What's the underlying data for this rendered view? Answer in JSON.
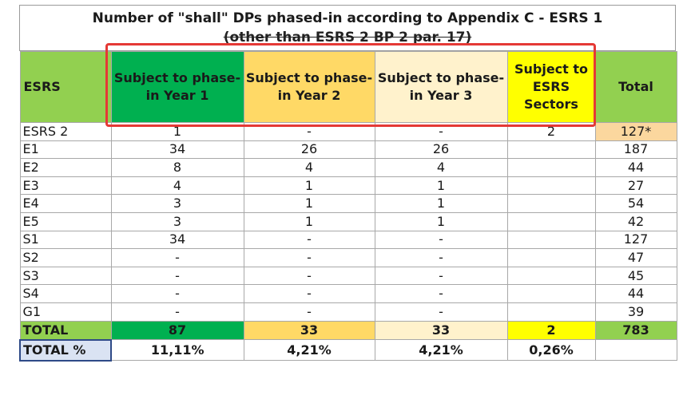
{
  "title": {
    "line1": "Number of \"shall\" DPs phased-in according to Appendix C - ESRS 1",
    "line2": "(other than ESRS 2 BP 2 par. 17)"
  },
  "headers": {
    "esrs": "ESRS",
    "year1": "Subject to phase-in Year 1",
    "year2": "Subject to phase-in Year 2",
    "year3": "Subject to phase-in Year 3",
    "sectors": "Subject to ESRS Sectors",
    "total": "Total"
  },
  "rows": [
    {
      "esrs": "ESRS 2",
      "y1": "1",
      "y2": "-",
      "y3": "-",
      "sec": "2",
      "total": "127*"
    },
    {
      "esrs": "E1",
      "y1": "34",
      "y2": "26",
      "y3": "26",
      "sec": "",
      "total": "187"
    },
    {
      "esrs": "E2",
      "y1": "8",
      "y2": "4",
      "y3": "4",
      "sec": "",
      "total": "44"
    },
    {
      "esrs": "E3",
      "y1": "4",
      "y2": "1",
      "y3": "1",
      "sec": "",
      "total": "27"
    },
    {
      "esrs": "E4",
      "y1": "3",
      "y2": "1",
      "y3": "1",
      "sec": "",
      "total": "54"
    },
    {
      "esrs": "E5",
      "y1": "3",
      "y2": "1",
      "y3": "1",
      "sec": "",
      "total": "42"
    },
    {
      "esrs": "S1",
      "y1": "34",
      "y2": "-",
      "y3": "-",
      "sec": "",
      "total": "127"
    },
    {
      "esrs": "S2",
      "y1": "-",
      "y2": "-",
      "y3": "-",
      "sec": "",
      "total": "47"
    },
    {
      "esrs": "S3",
      "y1": "-",
      "y2": "-",
      "y3": "-",
      "sec": "",
      "total": "45"
    },
    {
      "esrs": "S4",
      "y1": "-",
      "y2": "-",
      "y3": "-",
      "sec": "",
      "total": "44"
    },
    {
      "esrs": "G1",
      "y1": "-",
      "y2": "-",
      "y3": "-",
      "sec": "",
      "total": "39"
    }
  ],
  "total_row": {
    "label": "TOTAL",
    "y1": "87",
    "y2": "33",
    "y3": "33",
    "sec": "2",
    "total": "783"
  },
  "pct_row": {
    "label": "TOTAL %",
    "y1": "11,11%",
    "y2": "4,21%",
    "y3": "4,21%",
    "sec": "0,26%",
    "total": ""
  },
  "colors": {
    "green_dark": "#00b050",
    "green_light": "#92d050",
    "orange": "#ffd966",
    "cream": "#fff2cc",
    "yellow": "#ffff00",
    "highlight_box": "#e53935"
  }
}
